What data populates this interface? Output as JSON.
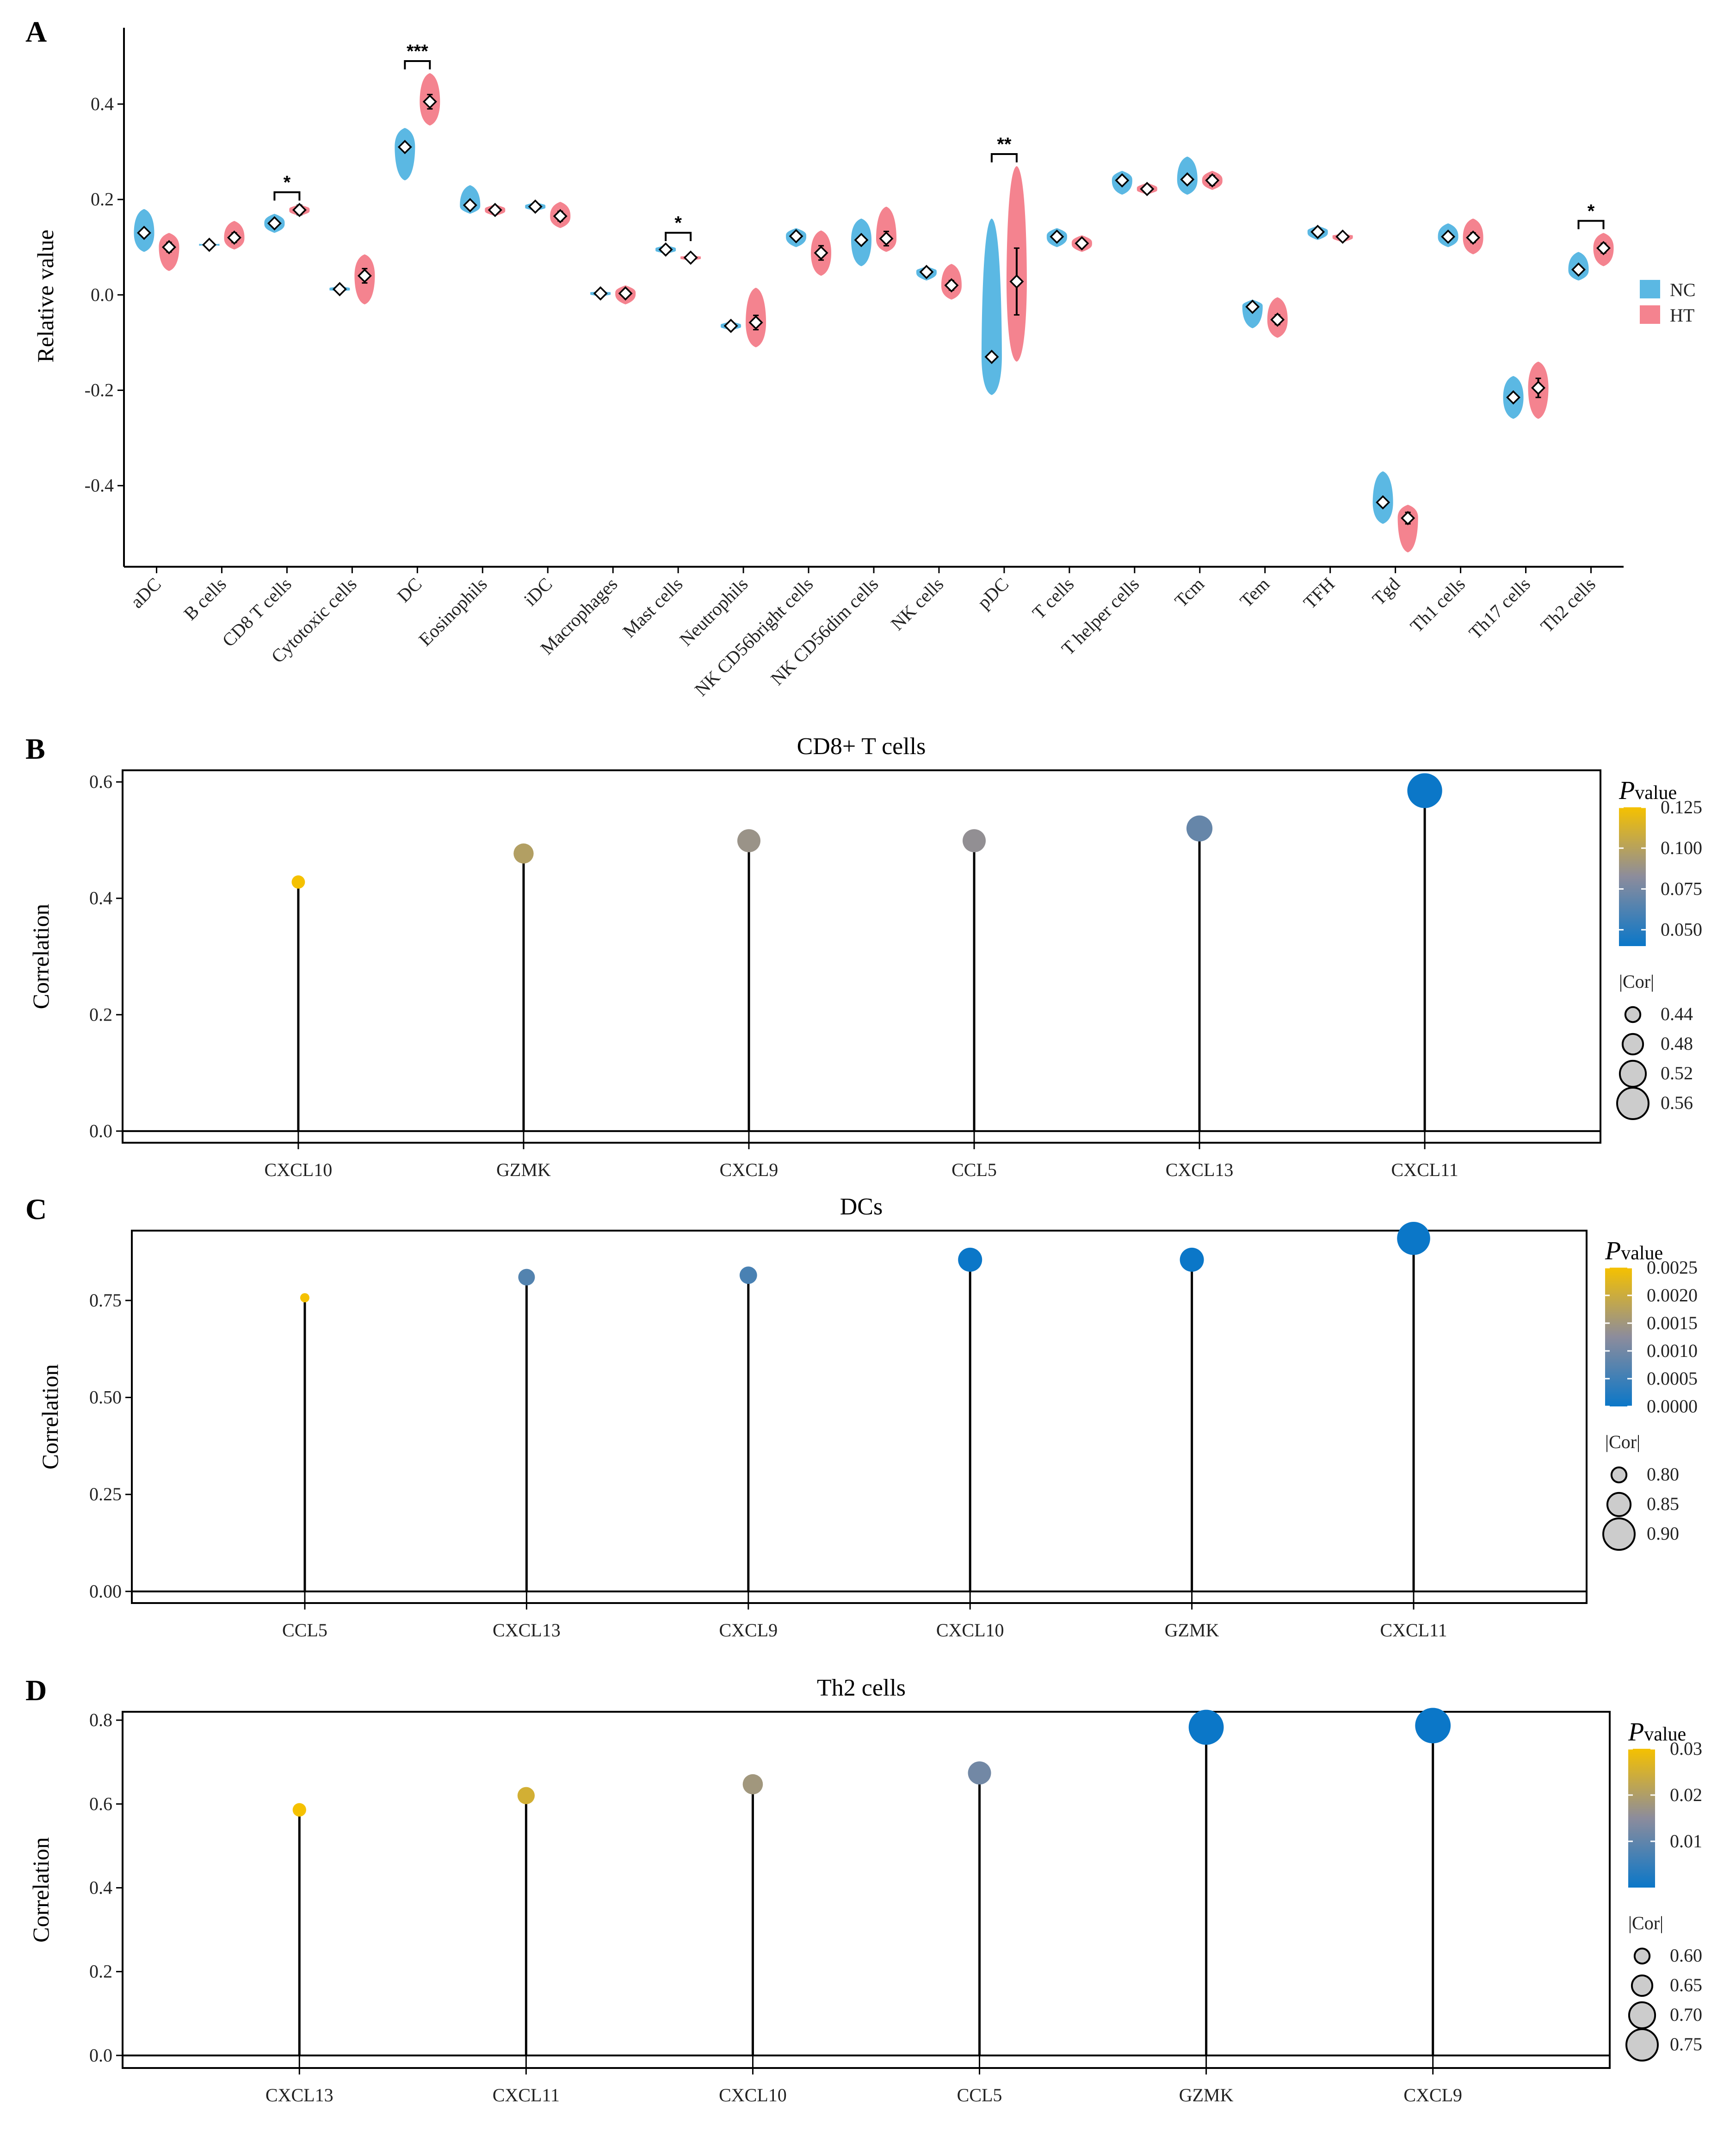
{
  "panels": {
    "A": {
      "label": "A",
      "ylabel": "Relative value",
      "legend": [
        {
          "name": "NC",
          "color": "#5BB8E3"
        },
        {
          "name": "HT",
          "color": "#F4838F"
        }
      ]
    },
    "B": {
      "label": "B",
      "title": "CD8+ T cells"
    },
    "C": {
      "label": "C",
      "title": "DCs"
    },
    "D": {
      "label": "D",
      "title": "Th2 cells"
    }
  },
  "chart_data": [
    {
      "id": "A",
      "type": "violin",
      "ylabel": "Relative value",
      "ylim": [
        -0.57,
        0.56
      ],
      "yticks": [
        -0.4,
        -0.2,
        0.0,
        0.2,
        0.4
      ],
      "ytick_labels": [
        "-0.4",
        "-0.2",
        "0.0",
        "0.2",
        "0.4"
      ],
      "categories": [
        "aDC",
        "B cells",
        "CD8 T cells",
        "Cytotoxic cells",
        "DC",
        "Eosinophils",
        "iDC",
        "Macrophages",
        "Mast cells",
        "Neutrophils",
        "NK CD56bright cells",
        "NK CD56dim cells",
        "NK cells",
        "pDC",
        "T cells",
        "T helper cells",
        "Tcm",
        "Tem",
        "TFH",
        "Tgd",
        "Th1 cells",
        "Th17 cells",
        "Th2 cells"
      ],
      "series": [
        {
          "name": "NC",
          "color": "#5BB8E3",
          "mean": [
            0.13,
            0.105,
            0.15,
            0.012,
            0.31,
            0.188,
            0.185,
            0.003,
            0.095,
            -0.065,
            0.123,
            0.115,
            0.048,
            -0.13,
            0.122,
            0.24,
            0.242,
            -0.025,
            0.132,
            -0.435,
            0.122,
            -0.215,
            0.053
          ],
          "min": [
            0.09,
            0.1,
            0.13,
            0.005,
            0.24,
            0.17,
            0.175,
            -0.005,
            0.085,
            -0.075,
            0.1,
            0.06,
            0.03,
            -0.21,
            0.1,
            0.21,
            0.21,
            -0.07,
            0.115,
            -0.48,
            0.1,
            -0.26,
            0.03
          ],
          "max": [
            0.18,
            0.11,
            0.17,
            0.02,
            0.35,
            0.23,
            0.195,
            0.01,
            0.105,
            -0.055,
            0.14,
            0.16,
            0.06,
            0.16,
            0.14,
            0.26,
            0.29,
            -0.01,
            0.145,
            -0.37,
            0.15,
            -0.17,
            0.09
          ]
        },
        {
          "name": "HT",
          "color": "#F4838F",
          "mean": [
            0.1,
            0.12,
            0.178,
            0.04,
            0.405,
            0.178,
            0.165,
            0.003,
            0.078,
            -0.058,
            0.088,
            0.118,
            0.02,
            0.028,
            0.108,
            0.222,
            0.24,
            -0.052,
            0.122,
            -0.468,
            0.12,
            -0.195,
            0.098
          ],
          "min": [
            0.05,
            0.095,
            0.165,
            -0.02,
            0.355,
            0.165,
            0.14,
            -0.02,
            0.07,
            -0.11,
            0.04,
            0.09,
            -0.01,
            -0.14,
            0.09,
            0.21,
            0.22,
            -0.09,
            0.11,
            -0.54,
            0.085,
            -0.26,
            0.06
          ],
          "max": [
            0.13,
            0.155,
            0.19,
            0.085,
            0.465,
            0.19,
            0.195,
            0.02,
            0.085,
            0.015,
            0.135,
            0.185,
            0.065,
            0.27,
            0.125,
            0.235,
            0.26,
            -0.005,
            0.13,
            -0.44,
            0.16,
            -0.14,
            0.13
          ],
          "err": [
            0.01,
            0.01,
            0.01,
            0.015,
            0.015,
            0.005,
            0.01,
            0.005,
            0.003,
            0.015,
            0.015,
            0.015,
            0.01,
            0.07,
            0.005,
            0.003,
            0.01,
            0.01,
            0.003,
            0.012,
            0.01,
            0.02,
            0.01
          ]
        }
      ],
      "significance": [
        {
          "category": "CD8 T cells",
          "label": "*"
        },
        {
          "category": "DC",
          "label": "***"
        },
        {
          "category": "Mast cells",
          "label": "*"
        },
        {
          "category": "pDC",
          "label": "**"
        },
        {
          "category": "Th2 cells",
          "label": "*"
        }
      ],
      "legend": [
        "NC",
        "HT"
      ]
    },
    {
      "id": "B",
      "type": "lollipop",
      "title": "CD8+ T cells",
      "ylabel": "Correlation",
      "ylim": [
        -0.02,
        0.62
      ],
      "yticks": [
        0.0,
        0.2,
        0.4,
        0.6
      ],
      "ytick_labels": [
        "0.0",
        "0.2",
        "0.4",
        "0.6"
      ],
      "categories": [
        "CXCL10",
        "GZMK",
        "CXCL9",
        "CCL5",
        "CXCL13",
        "CXCL11"
      ],
      "values": [
        0.428,
        0.477,
        0.499,
        0.499,
        0.52,
        0.585
      ],
      "pvalues": [
        0.125,
        0.098,
        0.088,
        0.085,
        0.07,
        0.04
      ],
      "p_legend": {
        "title": "value",
        "ticks": [
          0.125,
          0.1,
          0.075,
          0.05
        ],
        "tick_labels": [
          "0.125",
          "0.100",
          "0.075",
          "0.050"
        ],
        "range": [
          0.04,
          0.125
        ]
      },
      "size_legend": {
        "title": "|Cor|",
        "values": [
          0.44,
          0.48,
          0.52,
          0.56
        ],
        "labels": [
          "0.44",
          "0.48",
          "0.52",
          "0.56"
        ]
      }
    },
    {
      "id": "C",
      "type": "lollipop",
      "title": "DCs",
      "ylabel": "Correlation",
      "ylim": [
        -0.03,
        0.93
      ],
      "yticks": [
        0.0,
        0.25,
        0.5,
        0.75
      ],
      "ytick_labels": [
        "0.00",
        "0.25",
        "0.50",
        "0.75"
      ],
      "categories": [
        "CCL5",
        "CXCL13",
        "CXCL9",
        "CXCL10",
        "GZMK",
        "CXCL11"
      ],
      "values": [
        0.757,
        0.81,
        0.815,
        0.855,
        0.855,
        0.91
      ],
      "pvalues": [
        0.0025,
        0.0007,
        0.0006,
        0.0,
        0.0,
        0.0
      ],
      "p_legend": {
        "title": "value",
        "ticks": [
          0.0025,
          0.002,
          0.0015,
          0.001,
          0.0005,
          0.0
        ],
        "tick_labels": [
          "0.0025",
          "0.0020",
          "0.0015",
          "0.0010",
          "0.0005",
          "0.0000"
        ],
        "range": [
          0.0,
          0.0025
        ]
      },
      "size_legend": {
        "title": "|Cor|",
        "values": [
          0.8,
          0.85,
          0.9
        ],
        "labels": [
          "0.80",
          "0.85",
          "0.90"
        ]
      }
    },
    {
      "id": "D",
      "type": "lollipop",
      "title": "Th2 cells",
      "ylabel": "Correlation",
      "ylim": [
        -0.03,
        0.82
      ],
      "yticks": [
        0.0,
        0.2,
        0.4,
        0.6,
        0.8
      ],
      "ytick_labels": [
        "0.0",
        "0.2",
        "0.4",
        "0.6",
        "0.8"
      ],
      "categories": [
        "CXCL13",
        "CXCL11",
        "CXCL10",
        "CCL5",
        "GZMK",
        "CXCL9"
      ],
      "values": [
        0.586,
        0.62,
        0.647,
        0.674,
        0.783,
        0.787
      ],
      "pvalues": [
        0.03,
        0.025,
        0.018,
        0.012,
        0.0,
        0.0
      ],
      "p_legend": {
        "title": "value",
        "ticks": [
          0.03,
          0.02,
          0.01
        ],
        "tick_labels": [
          "0.03",
          "0.02",
          "0.01"
        ],
        "range": [
          0.0,
          0.03
        ]
      },
      "size_legend": {
        "title": "|Cor|",
        "values": [
          0.6,
          0.65,
          0.7,
          0.75
        ],
        "labels": [
          "0.60",
          "0.65",
          "0.70",
          "0.75"
        ]
      }
    }
  ],
  "colors": {
    "nc": "#5BB8E3",
    "ht": "#F4838F",
    "p_high": "#F5C100",
    "p_mid": "#8C8C9C",
    "p_low": "#0B77C8"
  },
  "p_symbol": "P"
}
